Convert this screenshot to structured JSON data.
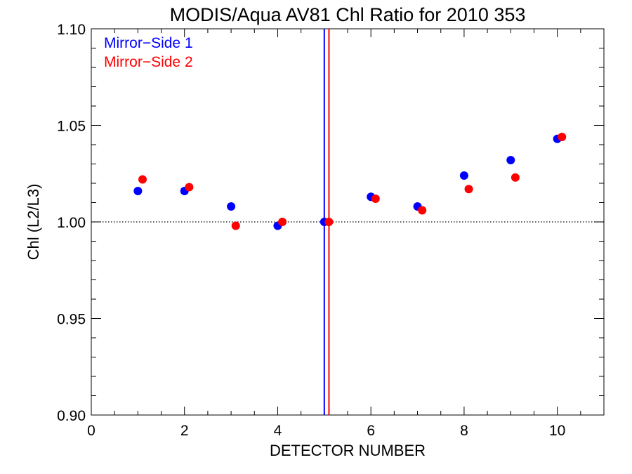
{
  "chart_data": {
    "type": "scatter",
    "title": "MODIS/Aqua AV81 Chl Ratio for 2010 353",
    "xlabel": "DETECTOR NUMBER",
    "ylabel": "Chl (L2/L3)",
    "xlim": [
      0,
      11
    ],
    "ylim": [
      0.9,
      1.1
    ],
    "x_ticks": [
      0,
      2,
      4,
      6,
      8,
      10
    ],
    "x_tick_labels": [
      "0",
      "2",
      "4",
      "6",
      "8",
      "10"
    ],
    "y_ticks": [
      0.9,
      0.95,
      1.0,
      1.05,
      1.1
    ],
    "y_tick_labels": [
      "0.90",
      "0.95",
      "1.00",
      "1.05",
      "1.10"
    ],
    "reference_line_y": 1.0,
    "legend_position": "top-left",
    "series": [
      {
        "name": "Mirror−Side 1",
        "color": "#0000ff",
        "x": [
          1,
          2,
          3,
          4,
          5,
          6,
          7,
          8,
          9,
          10
        ],
        "y": [
          1.016,
          1.016,
          1.008,
          0.998,
          1.0,
          1.013,
          1.008,
          1.024,
          1.032,
          1.043
        ],
        "vertical_marker_x": 5.0
      },
      {
        "name": "Mirror−Side 2",
        "color": "#ff0000",
        "x": [
          1.1,
          2.1,
          3.1,
          4.1,
          5.1,
          6.1,
          7.1,
          8.1,
          9.1,
          10.1
        ],
        "y": [
          1.022,
          1.018,
          0.998,
          1.0,
          1.0,
          1.012,
          1.006,
          1.017,
          1.023,
          1.044
        ],
        "vertical_marker_x": 5.1
      }
    ]
  }
}
